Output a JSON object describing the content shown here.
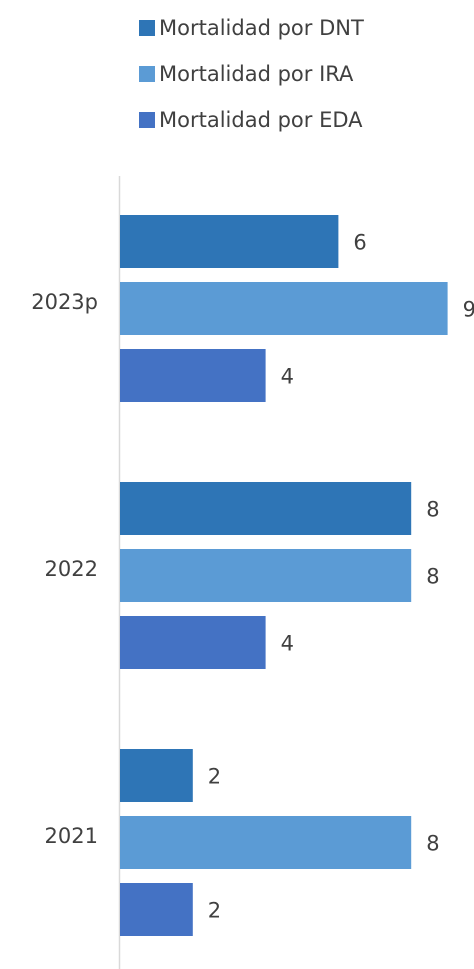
{
  "chart_data": {
    "type": "bar",
    "orientation": "horizontal",
    "categories": [
      "2023p",
      "2022",
      "2021"
    ],
    "series": [
      {
        "name": "Mortalidad por DNT",
        "values": [
          6,
          8,
          2
        ],
        "color": "#2E75B6"
      },
      {
        "name": "Mortalidad por IRA",
        "values": [
          9,
          8,
          8
        ],
        "color": "#5B9BD5"
      },
      {
        "name": "Mortalidad por EDA",
        "values": [
          4,
          4,
          2
        ],
        "color": "#4472C4"
      }
    ],
    "title": "",
    "xlabel": "",
    "ylabel": "",
    "xlim": [
      0,
      9
    ],
    "grid": false,
    "legend": "top",
    "data_labels": true
  }
}
